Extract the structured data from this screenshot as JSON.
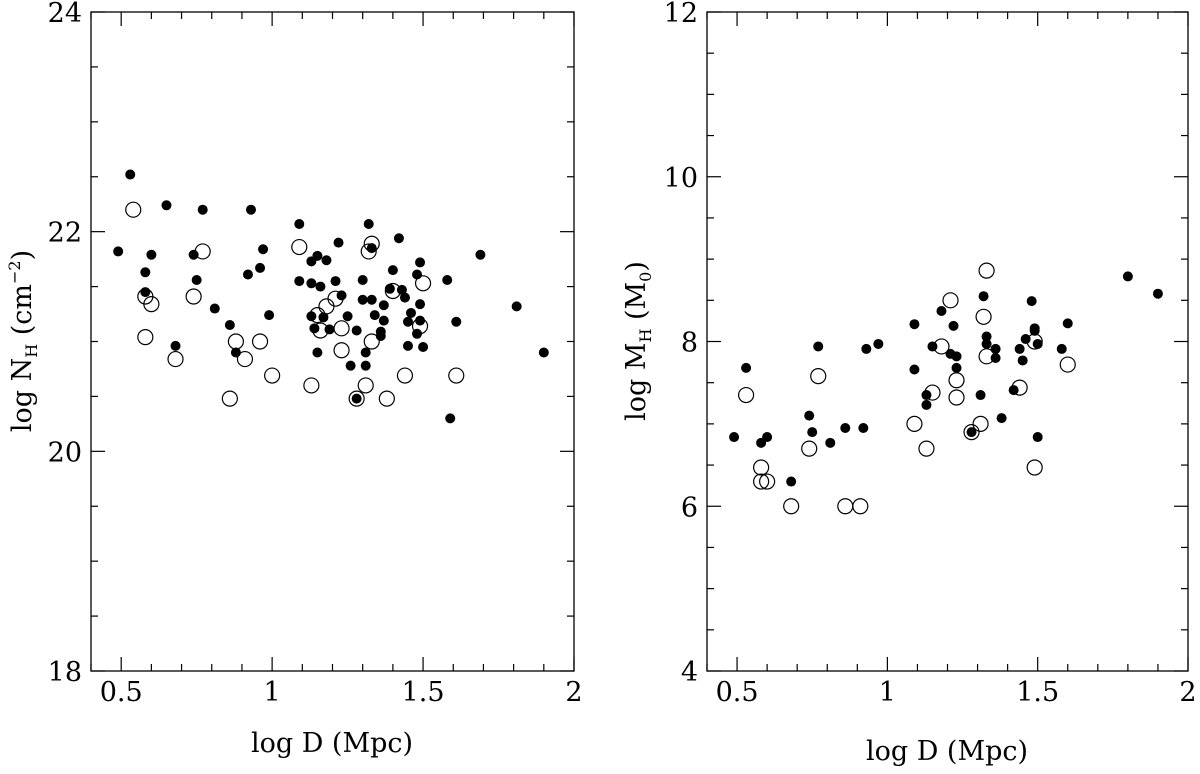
{
  "chart_data": [
    {
      "type": "scatter",
      "id": "left",
      "xlabel": "log D (Mpc)",
      "ylabel": "log N_H (cm^-2)",
      "ylabel_parts": {
        "pre": "log N",
        "sub": "H",
        "mid": " (cm",
        "sup": "−2",
        "post": ")"
      },
      "xlim": [
        0.4,
        2.0
      ],
      "ylim": [
        18,
        24
      ],
      "x_ticks": [
        0.5,
        1,
        1.5,
        2
      ],
      "x_tick_labels": [
        "0.5",
        "1",
        "1.5",
        "2"
      ],
      "y_ticks": [
        18,
        20,
        22,
        24
      ],
      "y_tick_labels": [
        "18",
        "20",
        "22",
        "24"
      ],
      "x_minor_step": 0.1,
      "y_minor_step": 0.5,
      "series": [
        {
          "name": "filled",
          "marker": "filled-circle",
          "points": [
            [
              0.49,
              21.82
            ],
            [
              0.53,
              22.52
            ],
            [
              0.58,
              21.63
            ],
            [
              0.58,
              21.45
            ],
            [
              0.6,
              21.79
            ],
            [
              0.65,
              22.24
            ],
            [
              0.68,
              20.96
            ],
            [
              0.74,
              21.79
            ],
            [
              0.75,
              21.56
            ],
            [
              0.77,
              22.2
            ],
            [
              0.81,
              21.3
            ],
            [
              0.86,
              21.15
            ],
            [
              0.88,
              20.9
            ],
            [
              0.92,
              21.61
            ],
            [
              0.93,
              22.2
            ],
            [
              0.96,
              21.67
            ],
            [
              0.97,
              21.84
            ],
            [
              0.99,
              21.24
            ],
            [
              1.09,
              22.07
            ],
            [
              1.09,
              21.55
            ],
            [
              1.13,
              21.73
            ],
            [
              1.13,
              21.53
            ],
            [
              1.13,
              21.23
            ],
            [
              1.14,
              21.12
            ],
            [
              1.15,
              21.78
            ],
            [
              1.15,
              20.9
            ],
            [
              1.16,
              21.5
            ],
            [
              1.17,
              21.22
            ],
            [
              1.18,
              21.74
            ],
            [
              1.19,
              21.11
            ],
            [
              1.21,
              21.55
            ],
            [
              1.22,
              21.9
            ],
            [
              1.23,
              21.42
            ],
            [
              1.25,
              21.23
            ],
            [
              1.26,
              20.78
            ],
            [
              1.28,
              21.1
            ],
            [
              1.28,
              20.48
            ],
            [
              1.3,
              21.56
            ],
            [
              1.3,
              21.38
            ],
            [
              1.31,
              20.9
            ],
            [
              1.31,
              20.78
            ],
            [
              1.32,
              22.07
            ],
            [
              1.33,
              21.85
            ],
            [
              1.33,
              21.38
            ],
            [
              1.34,
              21.24
            ],
            [
              1.36,
              21.09
            ],
            [
              1.36,
              21.05
            ],
            [
              1.37,
              21.33
            ],
            [
              1.37,
              21.19
            ],
            [
              1.39,
              21.48
            ],
            [
              1.4,
              21.65
            ],
            [
              1.42,
              21.94
            ],
            [
              1.43,
              21.47
            ],
            [
              1.44,
              21.4
            ],
            [
              1.45,
              21.18
            ],
            [
              1.45,
              20.96
            ],
            [
              1.46,
              21.26
            ],
            [
              1.48,
              21.61
            ],
            [
              1.48,
              21.07
            ],
            [
              1.49,
              21.34
            ],
            [
              1.49,
              21.19
            ],
            [
              1.49,
              21.72
            ],
            [
              1.5,
              20.95
            ],
            [
              1.58,
              21.56
            ],
            [
              1.59,
              20.3
            ],
            [
              1.61,
              21.18
            ],
            [
              1.69,
              21.79
            ],
            [
              1.81,
              21.32
            ],
            [
              1.9,
              20.9
            ]
          ]
        },
        {
          "name": "open",
          "marker": "open-circle",
          "points": [
            [
              0.54,
              22.2
            ],
            [
              0.58,
              21.41
            ],
            [
              0.58,
              21.04
            ],
            [
              0.6,
              21.34
            ],
            [
              0.68,
              20.84
            ],
            [
              0.74,
              21.41
            ],
            [
              0.77,
              21.82
            ],
            [
              0.86,
              20.48
            ],
            [
              0.88,
              21.0
            ],
            [
              0.91,
              20.84
            ],
            [
              0.96,
              21.0
            ],
            [
              1.0,
              20.69
            ],
            [
              1.09,
              21.86
            ],
            [
              1.13,
              20.6
            ],
            [
              1.15,
              21.24
            ],
            [
              1.16,
              21.1
            ],
            [
              1.18,
              21.32
            ],
            [
              1.21,
              21.39
            ],
            [
              1.23,
              21.12
            ],
            [
              1.23,
              20.92
            ],
            [
              1.28,
              20.48
            ],
            [
              1.31,
              20.6
            ],
            [
              1.32,
              21.82
            ],
            [
              1.33,
              21.89
            ],
            [
              1.33,
              21.0
            ],
            [
              1.38,
              20.48
            ],
            [
              1.4,
              21.46
            ],
            [
              1.44,
              20.69
            ],
            [
              1.49,
              21.14
            ],
            [
              1.5,
              21.53
            ],
            [
              1.61,
              20.69
            ]
          ]
        }
      ]
    },
    {
      "type": "scatter",
      "id": "right",
      "xlabel": "log D (Mpc)",
      "ylabel": "log M_H (M_0)",
      "ylabel_parts": {
        "pre": "log M",
        "sub": "H",
        "mid": " (M",
        "sub2": "0",
        "post": ")"
      },
      "xlim": [
        0.4,
        2.0
      ],
      "ylim": [
        4,
        12
      ],
      "x_ticks": [
        0.5,
        1,
        1.5,
        2
      ],
      "x_tick_labels": [
        "0.5",
        "1",
        "1.5",
        "2"
      ],
      "y_ticks": [
        4,
        6,
        8,
        10,
        12
      ],
      "y_tick_labels": [
        "4",
        "6",
        "8",
        "10",
        "12"
      ],
      "x_minor_step": 0.1,
      "y_minor_step": 0.5,
      "series": [
        {
          "name": "filled",
          "marker": "filled-circle",
          "points": [
            [
              0.49,
              6.84
            ],
            [
              0.53,
              7.68
            ],
            [
              0.58,
              6.77
            ],
            [
              0.6,
              6.84
            ],
            [
              0.68,
              6.3
            ],
            [
              0.74,
              7.1
            ],
            [
              0.75,
              6.9
            ],
            [
              0.77,
              7.94
            ],
            [
              0.81,
              6.77
            ],
            [
              0.86,
              6.95
            ],
            [
              0.92,
              6.95
            ],
            [
              0.93,
              7.91
            ],
            [
              0.97,
              7.97
            ],
            [
              1.09,
              8.21
            ],
            [
              1.09,
              7.66
            ],
            [
              1.13,
              7.35
            ],
            [
              1.13,
              7.23
            ],
            [
              1.15,
              7.94
            ],
            [
              1.18,
              8.37
            ],
            [
              1.21,
              7.85
            ],
            [
              1.22,
              8.19
            ],
            [
              1.23,
              7.68
            ],
            [
              1.23,
              7.82
            ],
            [
              1.28,
              6.9
            ],
            [
              1.31,
              7.35
            ],
            [
              1.32,
              8.55
            ],
            [
              1.33,
              7.97
            ],
            [
              1.33,
              8.06
            ],
            [
              1.36,
              7.91
            ],
            [
              1.36,
              7.8
            ],
            [
              1.38,
              7.07
            ],
            [
              1.42,
              7.41
            ],
            [
              1.44,
              7.91
            ],
            [
              1.45,
              7.77
            ],
            [
              1.46,
              8.03
            ],
            [
              1.48,
              8.49
            ],
            [
              1.49,
              8.16
            ],
            [
              1.49,
              8.13
            ],
            [
              1.5,
              6.84
            ],
            [
              1.5,
              7.97
            ],
            [
              1.58,
              7.91
            ],
            [
              1.6,
              8.22
            ],
            [
              1.8,
              8.79
            ],
            [
              1.9,
              8.58
            ]
          ]
        },
        {
          "name": "open",
          "marker": "open-circle",
          "points": [
            [
              0.53,
              7.35
            ],
            [
              0.58,
              6.47
            ],
            [
              0.58,
              6.3
            ],
            [
              0.6,
              6.3
            ],
            [
              0.68,
              6.0
            ],
            [
              0.74,
              6.7
            ],
            [
              0.77,
              7.58
            ],
            [
              0.86,
              6.0
            ],
            [
              0.91,
              6.0
            ],
            [
              1.09,
              7.0
            ],
            [
              1.13,
              6.7
            ],
            [
              1.15,
              7.38
            ],
            [
              1.18,
              7.94
            ],
            [
              1.21,
              8.5
            ],
            [
              1.23,
              7.53
            ],
            [
              1.23,
              7.32
            ],
            [
              1.28,
              6.9
            ],
            [
              1.31,
              7.0
            ],
            [
              1.32,
              8.3
            ],
            [
              1.33,
              7.82
            ],
            [
              1.33,
              8.86
            ],
            [
              1.44,
              7.44
            ],
            [
              1.49,
              8.0
            ],
            [
              1.49,
              6.47
            ],
            [
              1.6,
              7.72
            ]
          ]
        }
      ]
    }
  ]
}
